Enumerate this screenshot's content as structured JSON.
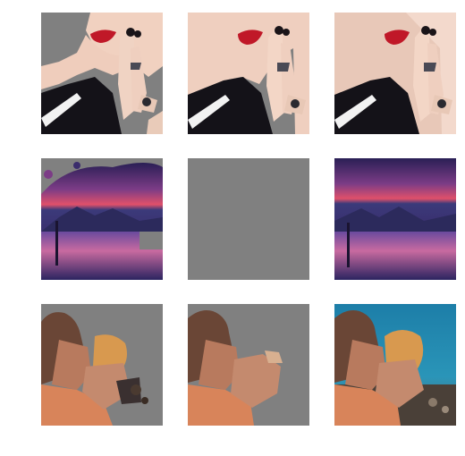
{
  "grid": {
    "rows": 3,
    "columns": 3,
    "mask_color": "#808080",
    "background": "#ffffff"
  },
  "rows": [
    {
      "subject": "woman-red-lips-hand-gesture",
      "tiles": [
        "partial-mask",
        "light-mask",
        "full-image"
      ]
    },
    {
      "subject": "purple-sunset-lake",
      "tiles": [
        "partial-mask",
        "fully-masked",
        "full-image"
      ]
    },
    {
      "subject": "man-biting-fruit",
      "tiles": [
        "partial-mask",
        "partial-mask",
        "full-image"
      ]
    }
  ]
}
